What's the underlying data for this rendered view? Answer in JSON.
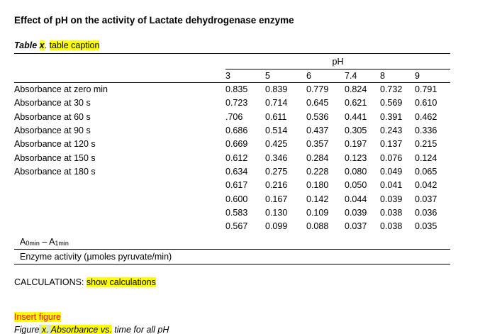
{
  "document": {
    "title": "Effect of pH on the activity of Lactate dehydrogenase enzyme"
  },
  "table_caption": {
    "prefix": "Table ",
    "number": "x",
    "period": ". ",
    "text": "table caption"
  },
  "table": {
    "group_header": "pH",
    "columns": [
      "3",
      "5",
      "6",
      "7.4",
      "8",
      "9"
    ],
    "rows": [
      {
        "label": "Absorbance at zero min",
        "values": [
          "0.835",
          "0.839",
          "0.779",
          "0.824",
          "0.732",
          "0.791"
        ]
      },
      {
        "label": "Absorbance at 30 s",
        "values": [
          "0.723",
          "0.714",
          "0.645",
          "0.621",
          "0.569",
          "0.610"
        ]
      },
      {
        "label": "Absorbance at 60 s",
        "values": [
          ".706",
          "0.611",
          "0.536",
          "0.441",
          "0.391",
          "0.462"
        ]
      },
      {
        "label": "Absorbance at 90 s",
        "values": [
          "0.686",
          "0.514",
          "0.437",
          "0.305",
          "0.243",
          "0.336"
        ]
      },
      {
        "label": "Absorbance at 120 s",
        "values": [
          "0.669",
          "0.425",
          "0.357",
          "0.197",
          "0.137",
          "0.215"
        ]
      },
      {
        "label": "Absorbance at 150 s",
        "values": [
          "0.612",
          "0.346",
          "0.284",
          "0.123",
          "0.076",
          "0.124"
        ]
      },
      {
        "label": "Absorbance at 180 s",
        "values": [
          "0.634",
          "0.275",
          "0.228",
          "0.080",
          "0.049",
          "0.065"
        ]
      },
      {
        "label": "",
        "values": [
          "0.617",
          "0.216",
          "0.180",
          "0.050",
          "0.041",
          "0.042"
        ]
      },
      {
        "label": "",
        "values": [
          "0.600",
          "0.167",
          "0.142",
          "0.044",
          "0.039",
          "0.037"
        ]
      },
      {
        "label": "",
        "values": [
          "0.583",
          "0.130",
          "0.109",
          "0.039",
          "0.038",
          "0.036"
        ]
      },
      {
        "label": "",
        "values": [
          "0.567",
          "0.099",
          "0.088",
          "0.037",
          "0.038",
          "0.035"
        ]
      }
    ],
    "delta": {
      "a": "A",
      "sub0": "0min",
      "dash": " – ",
      "sub1": "1min"
    },
    "activity_label": "Enzyme activity (µmoles pyruvate/min)"
  },
  "calculations": {
    "label": "CALCULATIONS: ",
    "placeholder": "show calculations"
  },
  "figure": {
    "insert_label": "Insert figure",
    "prefix": "Figure",
    "space_green": " ",
    "number": "x",
    "period_green": ". ",
    "highlighted": "Absorbance vs.",
    "rest": " time for all pH"
  },
  "colors": {
    "highlight_yellow": "#ffff00",
    "highlight_green": "#d8e5d2",
    "insert_red": "#ff0000"
  }
}
